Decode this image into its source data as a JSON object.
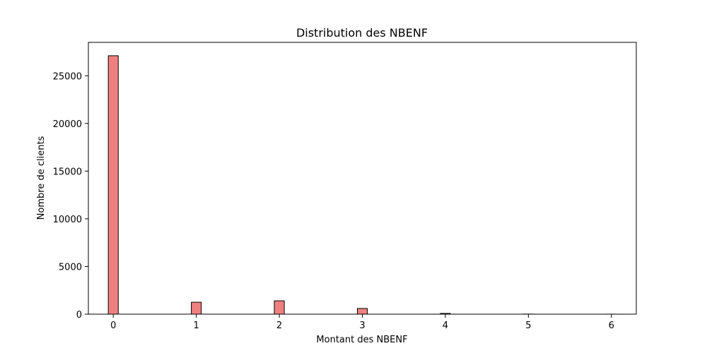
{
  "chart_data": {
    "type": "bar",
    "title": "Distribution des NBENF",
    "xlabel": "Montant des NBENF",
    "ylabel": "Nombre de clients",
    "xlim": [
      -0.3,
      6.3
    ],
    "ylim": [
      0,
      28500
    ],
    "x_ticks": [
      0,
      1,
      2,
      3,
      4,
      5,
      6
    ],
    "y_ticks": [
      0,
      5000,
      10000,
      15000,
      20000,
      25000
    ],
    "bin_width": 0.12,
    "x": [
      0,
      1,
      2,
      3,
      4,
      5,
      6
    ],
    "values": [
      27100,
      1250,
      1400,
      600,
      80,
      10,
      5
    ],
    "grid": false,
    "bar_color": "#f08080",
    "edge_color": "#000000"
  }
}
